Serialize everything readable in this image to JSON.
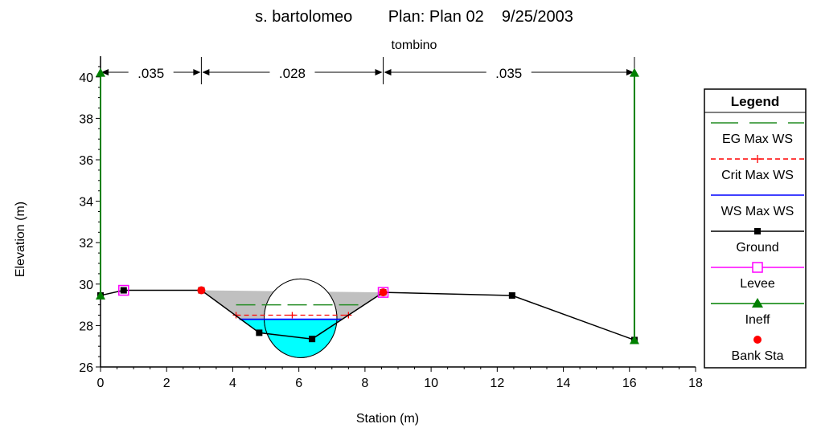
{
  "chart_data": {
    "type": "line",
    "title": "s. bartolomeo        Plan: Plan 02    9/25/2003",
    "subtitle": "tombino",
    "xlabel": "Station (m)",
    "ylabel": "Elevation (m)",
    "xlim": [
      0,
      18
    ],
    "ylim": [
      26,
      41
    ],
    "x_ticks": [
      0,
      2,
      4,
      6,
      8,
      10,
      12,
      14,
      16,
      18
    ],
    "y_ticks": [
      26,
      28,
      30,
      32,
      34,
      36,
      38,
      40
    ],
    "manning": [
      {
        "label": ".035",
        "from": 0,
        "to": 3.05
      },
      {
        "label": ".028",
        "from": 3.05,
        "to": 8.55
      },
      {
        "label": ".035",
        "from": 8.55,
        "to": 16.15
      }
    ],
    "series": [
      {
        "name": "Ground",
        "color": "#000000",
        "x": [
          0,
          0.7,
          3.05,
          4.8,
          6.4,
          8.55,
          12.45,
          16.15
        ],
        "y": [
          29.45,
          29.7,
          29.7,
          27.65,
          27.35,
          29.6,
          29.45,
          27.3
        ]
      },
      {
        "name": "EG Max WS",
        "color": "#228b22",
        "x": [
          4.1,
          7.8
        ],
        "y": [
          29.0,
          29.0
        ]
      },
      {
        "name": "Crit Max WS",
        "color": "#ff0000",
        "x": [
          4.1,
          7.5
        ],
        "y": [
          28.5,
          28.5
        ]
      },
      {
        "name": "WS Max WS",
        "color": "#0000ff",
        "x": [
          4.2,
          7.3
        ],
        "y": [
          28.3,
          28.3
        ]
      },
      {
        "name": "Levee",
        "color": "#ff00ff",
        "x": [
          0.7,
          8.55
        ],
        "y": [
          29.7,
          29.6
        ]
      },
      {
        "name": "Ineff",
        "color": "#008000",
        "x": [
          0,
          16.15
        ],
        "y": [
          40.2,
          40.2
        ]
      },
      {
        "name": "Bank Sta",
        "color": "#ff0000",
        "x": [
          3.05,
          8.55
        ],
        "y": [
          29.7,
          29.6
        ]
      }
    ],
    "legend": {
      "title": "Legend",
      "position": "right",
      "entries": [
        {
          "label": "EG Max WS",
          "color": "#228b22",
          "style": "dash-dot",
          "marker": "none"
        },
        {
          "label": "Crit Max WS",
          "color": "#ff0000",
          "style": "dashed",
          "marker": "plus"
        },
        {
          "label": "WS Max WS",
          "color": "#0000ff",
          "style": "solid",
          "marker": "none"
        },
        {
          "label": "Ground",
          "color": "#000000",
          "style": "solid",
          "marker": "square"
        },
        {
          "label": "Levee",
          "color": "#ff00ff",
          "style": "solid",
          "marker": "open-square"
        },
        {
          "label": "Ineff",
          "color": "#008000",
          "style": "solid",
          "marker": "triangle"
        },
        {
          "label": "Bank Sta",
          "color": "#ff0000",
          "style": "none",
          "marker": "circle"
        }
      ]
    },
    "colors": {
      "fill_gray": "#c0c0c0",
      "water": "#00ffff"
    }
  }
}
